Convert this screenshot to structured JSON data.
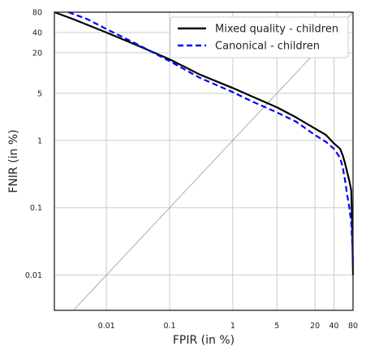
{
  "chart_data": {
    "type": "line",
    "xlabel": "FPIR (in %)",
    "ylabel": "FNIR (in %)",
    "x_scale": "log",
    "y_scale": "log",
    "xlim": [
      0.0015,
      80
    ],
    "ylim": [
      0.003,
      80
    ],
    "x_ticks": [
      {
        "value": 0.01,
        "label": "0.01"
      },
      {
        "value": 0.1,
        "label": "0.1"
      },
      {
        "value": 1,
        "label": "1"
      },
      {
        "value": 5,
        "label": "5"
      },
      {
        "value": 20,
        "label": "20"
      },
      {
        "value": 40,
        "label": "40"
      },
      {
        "value": 80,
        "label": "80"
      }
    ],
    "y_ticks": [
      {
        "value": 0.01,
        "label": "0.01"
      },
      {
        "value": 0.1,
        "label": "0.1"
      },
      {
        "value": 1,
        "label": "1"
      },
      {
        "value": 5,
        "label": "5"
      },
      {
        "value": 20,
        "label": "20"
      },
      {
        "value": 40,
        "label": "40"
      },
      {
        "value": 80,
        "label": "80"
      }
    ],
    "grid": true,
    "legend_position": "top-right",
    "diagonal_reference": true,
    "series": [
      {
        "name": "Mixed quality - children",
        "color": "#000000",
        "dash": "solid",
        "points": [
          [
            0.0015,
            80
          ],
          [
            0.003,
            63
          ],
          [
            0.01,
            40
          ],
          [
            0.03,
            26
          ],
          [
            0.1,
            16
          ],
          [
            0.3,
            9.5
          ],
          [
            1,
            6
          ],
          [
            2,
            4.5
          ],
          [
            5,
            3.1
          ],
          [
            10,
            2.2
          ],
          [
            20,
            1.5
          ],
          [
            30,
            1.2
          ],
          [
            40,
            0.9
          ],
          [
            50,
            0.75
          ],
          [
            55,
            0.6
          ],
          [
            60,
            0.45
          ],
          [
            65,
            0.33
          ],
          [
            70,
            0.25
          ],
          [
            75,
            0.18
          ],
          [
            78,
            0.05
          ],
          [
            80,
            0.01
          ]
        ]
      },
      {
        "name": "Canonical - children",
        "color": "#0000ff",
        "dash": "dashed",
        "points": [
          [
            0.0025,
            80
          ],
          [
            0.005,
            63
          ],
          [
            0.01,
            45
          ],
          [
            0.03,
            27
          ],
          [
            0.1,
            15
          ],
          [
            0.3,
            8.5
          ],
          [
            1,
            5.2
          ],
          [
            2,
            3.8
          ],
          [
            5,
            2.6
          ],
          [
            10,
            1.9
          ],
          [
            20,
            1.2
          ],
          [
            30,
            0.95
          ],
          [
            40,
            0.75
          ],
          [
            50,
            0.55
          ],
          [
            55,
            0.4
          ],
          [
            60,
            0.25
          ],
          [
            65,
            0.15
          ],
          [
            70,
            0.1
          ],
          [
            75,
            0.06
          ],
          [
            78,
            0.03
          ],
          [
            80,
            0.015
          ]
        ]
      }
    ]
  }
}
